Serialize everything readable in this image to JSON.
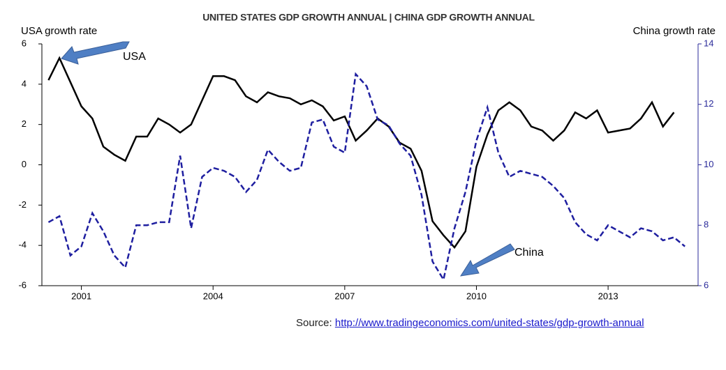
{
  "chart_data": {
    "type": "line",
    "title": "UNITED STATES GDP GROWTH ANNUAL  |  CHINA GDP GROWTH ANNUAL",
    "ylabel": "USA growth rate",
    "y2label": "China growth rate",
    "annotations": [
      "USA",
      "China"
    ],
    "source": "Source:",
    "source_link": "http://www.tradingeconomics.com/united-states/gdp-growth-annual",
    "x": [
      2000.25,
      2000.5,
      2000.75,
      2001,
      2001.25,
      2001.5,
      2001.75,
      2002,
      2002.25,
      2002.5,
      2002.75,
      2003,
      2003.25,
      2003.5,
      2003.75,
      2004,
      2004.25,
      2004.5,
      2004.75,
      2005,
      2005.25,
      2005.5,
      2005.75,
      2006,
      2006.25,
      2006.5,
      2006.75,
      2007,
      2007.25,
      2007.5,
      2007.75,
      2008,
      2008.25,
      2008.5,
      2008.75,
      2009,
      2009.25,
      2009.5,
      2009.75,
      2010,
      2010.25,
      2010.5,
      2010.75,
      2011,
      2011.25,
      2011.5,
      2011.75,
      2012,
      2012.25,
      2012.5,
      2012.75,
      2013,
      2013.25,
      2013.5,
      2013.75,
      2014,
      2014.25,
      2014.5,
      2014.75
    ],
    "series": [
      {
        "name": "USA",
        "color": "#000000",
        "dashed": false,
        "values": [
          4.2,
          5.3,
          4.1,
          2.9,
          2.3,
          0.9,
          0.5,
          0.2,
          1.4,
          1.4,
          2.3,
          2.0,
          1.6,
          2.0,
          3.2,
          4.4,
          4.4,
          4.2,
          3.4,
          3.1,
          3.6,
          3.4,
          3.3,
          3.0,
          3.2,
          2.9,
          2.2,
          2.4,
          1.2,
          1.7,
          2.3,
          1.9,
          1.1,
          0.8,
          -0.3,
          -2.8,
          -3.5,
          -4.1,
          -3.3,
          -0.1,
          1.5,
          2.7,
          3.1,
          2.7,
          1.9,
          1.7,
          1.2,
          1.7,
          2.6,
          2.3,
          2.7,
          1.6,
          1.7,
          1.8,
          2.3,
          3.1,
          1.9,
          2.6,
          null
        ]
      },
      {
        "name": "China",
        "color": "#1f1fa0",
        "dashed": true,
        "axis": "y2",
        "values": [
          8.1,
          8.3,
          7.0,
          7.3,
          8.4,
          7.8,
          7.0,
          6.6,
          8.0,
          8.0,
          8.1,
          8.1,
          10.3,
          7.9,
          9.6,
          9.9,
          9.8,
          9.6,
          9.1,
          9.5,
          10.5,
          10.1,
          9.8,
          9.9,
          11.4,
          11.5,
          10.6,
          10.4,
          13.0,
          12.6,
          11.5,
          11.3,
          10.7,
          10.3,
          9.0,
          6.8,
          6.2,
          7.9,
          9.1,
          10.8,
          11.9,
          10.4,
          9.6,
          9.8,
          9.7,
          9.6,
          9.3,
          8.9,
          8.1,
          7.7,
          7.5,
          8.0,
          7.8,
          7.6,
          7.9,
          7.8,
          7.5,
          7.6,
          7.3
        ]
      }
    ],
    "xlim": [
      2000.1,
      2015.05
    ],
    "xticks": [
      2001,
      2004,
      2007,
      2010,
      2013
    ],
    "ylim": [
      -6,
      6
    ],
    "yticks": [
      -6,
      -4,
      -2,
      0,
      2,
      4,
      6
    ],
    "y2lim": [
      6,
      14
    ],
    "y2ticks": [
      6,
      8,
      10,
      12,
      14
    ],
    "y2color": "#2a2a9a",
    "grid": false
  }
}
